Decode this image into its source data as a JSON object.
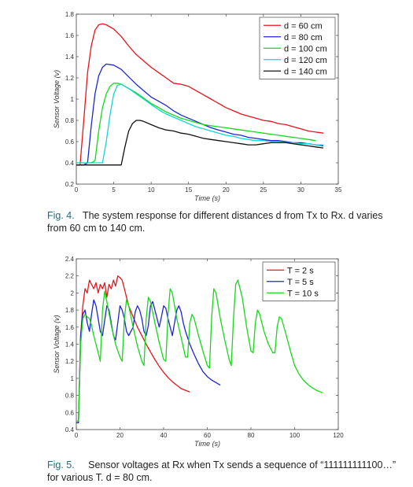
{
  "chart_data": [
    {
      "type": "line",
      "xlabel": "Time (s)",
      "ylabel": "Sensor Voltage (v)",
      "xlim": [
        0,
        35
      ],
      "ylim": [
        0.2,
        1.8
      ],
      "xticks": [
        0,
        5,
        10,
        15,
        20,
        25,
        30,
        35
      ],
      "yticks": [
        0.2,
        0.4,
        0.6,
        0.8,
        1,
        1.2,
        1.4,
        1.6,
        1.8
      ],
      "legend": "top-right",
      "grid": false,
      "series": [
        {
          "name": "d = 60 cm",
          "color": "#e8141b",
          "x": [
            0,
            0.5,
            1,
            1.5,
            2,
            2.5,
            3,
            3.5,
            4,
            5,
            6,
            7,
            8,
            9,
            10,
            11,
            12,
            13,
            14,
            15,
            16,
            17,
            18,
            19,
            20,
            21,
            22,
            23,
            24,
            25,
            26,
            27,
            28,
            29,
            30,
            31,
            32,
            33
          ],
          "y": [
            0.38,
            0.38,
            0.8,
            1.25,
            1.5,
            1.65,
            1.7,
            1.71,
            1.7,
            1.66,
            1.59,
            1.5,
            1.42,
            1.36,
            1.3,
            1.25,
            1.2,
            1.15,
            1.14,
            1.12,
            1.08,
            1.04,
            1.0,
            0.96,
            0.92,
            0.89,
            0.86,
            0.84,
            0.82,
            0.8,
            0.79,
            0.77,
            0.76,
            0.74,
            0.72,
            0.7,
            0.69,
            0.68
          ]
        },
        {
          "name": "d = 80 cm",
          "color": "#1c27d1",
          "x": [
            0,
            1,
            1.5,
            2,
            2.5,
            3,
            3.5,
            4,
            5,
            6,
            7,
            8,
            9,
            10,
            11,
            12,
            13,
            14,
            15,
            16,
            17,
            18,
            19,
            20,
            21,
            22,
            23,
            24,
            25,
            26,
            27,
            28,
            29,
            30,
            31,
            32,
            33
          ],
          "y": [
            0.38,
            0.38,
            0.4,
            0.75,
            1.05,
            1.22,
            1.3,
            1.33,
            1.32,
            1.28,
            1.21,
            1.14,
            1.08,
            1.02,
            0.98,
            0.94,
            0.89,
            0.85,
            0.82,
            0.79,
            0.76,
            0.73,
            0.71,
            0.69,
            0.67,
            0.66,
            0.64,
            0.63,
            0.62,
            0.61,
            0.61,
            0.6,
            0.59,
            0.59,
            0.58,
            0.57,
            0.56
          ]
        },
        {
          "name": "d = 100 cm",
          "color": "#18d81b",
          "x": [
            0,
            2,
            2.5,
            3,
            3.5,
            4,
            4.5,
            5,
            5.5,
            6,
            7,
            8,
            9,
            10,
            11,
            12,
            13,
            14,
            15,
            16,
            17,
            18,
            19,
            20,
            21,
            22,
            23,
            24,
            25,
            26,
            27,
            28,
            29,
            30,
            31,
            32
          ],
          "y": [
            0.4,
            0.4,
            0.42,
            0.7,
            0.92,
            1.05,
            1.12,
            1.15,
            1.15,
            1.14,
            1.1,
            1.06,
            1.01,
            0.96,
            0.92,
            0.88,
            0.85,
            0.82,
            0.8,
            0.78,
            0.76,
            0.75,
            0.74,
            0.73,
            0.72,
            0.71,
            0.7,
            0.69,
            0.68,
            0.67,
            0.66,
            0.65,
            0.64,
            0.63,
            0.62,
            0.61
          ]
        },
        {
          "name": "d = 120 cm",
          "color": "#11d8d3",
          "x": [
            0,
            3.5,
            4,
            4.5,
            5,
            5.5,
            6,
            7,
            8,
            9,
            10,
            11,
            12,
            13,
            14,
            15,
            16,
            17,
            18,
            19,
            20,
            21,
            22,
            23,
            24,
            25,
            26,
            27,
            28,
            29,
            30,
            31,
            32,
            33
          ],
          "y": [
            0.4,
            0.4,
            0.6,
            0.85,
            1.05,
            1.13,
            1.14,
            1.1,
            1.05,
            1.0,
            0.95,
            0.9,
            0.86,
            0.83,
            0.8,
            0.77,
            0.74,
            0.72,
            0.7,
            0.68,
            0.66,
            0.65,
            0.63,
            0.62,
            0.61,
            0.61,
            0.6,
            0.6,
            0.59,
            0.59,
            0.58,
            0.58,
            0.57,
            0.57
          ]
        },
        {
          "name": "d = 140 cm",
          "color": "#111111",
          "x": [
            0,
            6,
            6.5,
            7,
            7.5,
            8,
            8.5,
            9,
            10,
            11,
            12,
            13,
            14,
            15,
            16,
            17,
            18,
            19,
            20,
            21,
            22,
            23,
            24,
            25,
            26,
            27,
            28,
            29,
            30,
            31,
            32,
            33
          ],
          "y": [
            0.38,
            0.38,
            0.55,
            0.7,
            0.77,
            0.8,
            0.8,
            0.79,
            0.76,
            0.73,
            0.71,
            0.7,
            0.68,
            0.67,
            0.65,
            0.63,
            0.62,
            0.61,
            0.6,
            0.59,
            0.58,
            0.57,
            0.57,
            0.58,
            0.59,
            0.59,
            0.59,
            0.58,
            0.57,
            0.56,
            0.55,
            0.54
          ]
        }
      ]
    },
    {
      "type": "line",
      "xlabel": "Time (s)",
      "ylabel": "Sensor Voltage (v)",
      "xlim": [
        0,
        120
      ],
      "ylim": [
        0.4,
        2.4
      ],
      "xticks": [
        0,
        20,
        40,
        60,
        80,
        100,
        120
      ],
      "yticks": [
        0.4,
        0.6,
        0.8,
        1,
        1.2,
        1.4,
        1.6,
        1.8,
        2,
        2.2,
        2.4
      ],
      "legend": "top-right",
      "grid": false,
      "series": [
        {
          "name": "T = 2 s",
          "color": "#e8141b",
          "x": [
            0,
            1,
            2,
            3,
            4,
            5,
            6,
            7,
            8,
            9,
            10,
            11,
            12,
            13,
            14,
            15,
            16,
            17,
            18,
            19,
            20,
            21,
            22,
            23,
            24,
            26,
            28,
            30,
            32,
            34,
            36,
            38,
            40,
            42,
            44,
            46,
            48,
            50,
            52
          ],
          "y": [
            0.5,
            0.5,
            1.5,
            1.85,
            2.05,
            2.0,
            2.15,
            2.1,
            2.05,
            2.12,
            2.0,
            2.1,
            2.05,
            2.12,
            1.95,
            2.1,
            2.05,
            2.15,
            2.08,
            2.2,
            2.18,
            2.15,
            2.05,
            1.95,
            1.85,
            1.72,
            1.6,
            1.5,
            1.4,
            1.31,
            1.22,
            1.14,
            1.07,
            1.01,
            0.96,
            0.92,
            0.88,
            0.86,
            0.84
          ]
        },
        {
          "name": "T = 5 s",
          "color": "#1c27d1",
          "x": [
            0,
            1,
            2,
            3,
            4,
            5,
            6,
            7,
            8,
            9,
            10,
            11,
            12,
            13,
            14,
            15,
            16,
            17,
            18,
            19,
            20,
            21,
            22,
            23,
            24,
            25,
            26,
            27,
            28,
            29,
            30,
            31,
            32,
            33,
            34,
            35,
            36,
            37,
            38,
            39,
            40,
            41,
            42,
            43,
            44,
            45,
            46,
            47,
            48,
            49,
            50,
            52,
            54,
            56,
            58,
            60,
            62,
            64,
            66
          ],
          "y": [
            0.48,
            0.48,
            1.5,
            1.75,
            1.8,
            1.65,
            1.55,
            1.75,
            1.92,
            1.85,
            1.7,
            1.55,
            1.5,
            1.68,
            1.85,
            1.8,
            1.65,
            1.5,
            1.45,
            1.65,
            1.85,
            1.8,
            1.7,
            1.55,
            1.5,
            1.55,
            1.6,
            1.78,
            1.85,
            1.8,
            1.7,
            1.55,
            1.5,
            1.62,
            1.85,
            1.9,
            1.8,
            1.7,
            1.6,
            1.72,
            1.85,
            1.82,
            1.7,
            1.6,
            1.5,
            1.65,
            1.8,
            1.85,
            1.78,
            1.65,
            1.55,
            1.4,
            1.28,
            1.17,
            1.08,
            1.02,
            0.98,
            0.95,
            0.92
          ]
        },
        {
          "name": "T = 10 s",
          "color": "#18d81b",
          "x": [
            0,
            1,
            2,
            3,
            4,
            5,
            6,
            7,
            8,
            9,
            10,
            11,
            12,
            13,
            14,
            16,
            18,
            20,
            21,
            22,
            23,
            24,
            26,
            28,
            30,
            31,
            32,
            33,
            34,
            36,
            38,
            40,
            41,
            42,
            43,
            44,
            46,
            48,
            50,
            51,
            52,
            53,
            54,
            56,
            58,
            60,
            61,
            62,
            63,
            64,
            66,
            68,
            70,
            71,
            72,
            73,
            74,
            76,
            78,
            80,
            81,
            82,
            83,
            84,
            86,
            88,
            90,
            91,
            92,
            93,
            94,
            96,
            98,
            100,
            102,
            104,
            106,
            108,
            110,
            112,
            113
          ],
          "y": [
            0.5,
            0.5,
            1.4,
            1.7,
            1.75,
            1.72,
            1.7,
            1.62,
            1.5,
            1.4,
            1.3,
            1.2,
            1.8,
            2.02,
            1.9,
            1.62,
            1.4,
            1.25,
            1.2,
            1.7,
            1.92,
            1.85,
            1.6,
            1.38,
            1.2,
            1.15,
            1.7,
            1.95,
            1.9,
            1.65,
            1.42,
            1.22,
            1.2,
            1.75,
            2.05,
            2.0,
            1.7,
            1.48,
            1.25,
            1.25,
            1.65,
            1.75,
            1.7,
            1.5,
            1.32,
            1.15,
            1.12,
            1.72,
            2.05,
            2.0,
            1.7,
            1.45,
            1.22,
            1.15,
            1.7,
            2.1,
            2.15,
            1.95,
            1.6,
            1.32,
            1.3,
            1.65,
            1.8,
            1.75,
            1.55,
            1.4,
            1.3,
            1.3,
            1.6,
            1.72,
            1.7,
            1.52,
            1.33,
            1.15,
            1.05,
            0.98,
            0.93,
            0.89,
            0.86,
            0.84,
            0.83
          ]
        }
      ]
    }
  ],
  "captions": {
    "fig4_num": "Fig. 4.",
    "fig4_text": "The system response for different distances d from Tx to Rx. d varies from 60 cm to 140 cm.",
    "fig5_num": "Fig. 5.",
    "fig5_text": "Sensor voltages at Rx when Tx sends a sequence of “111111111100…” for various T. d = 80 cm."
  }
}
